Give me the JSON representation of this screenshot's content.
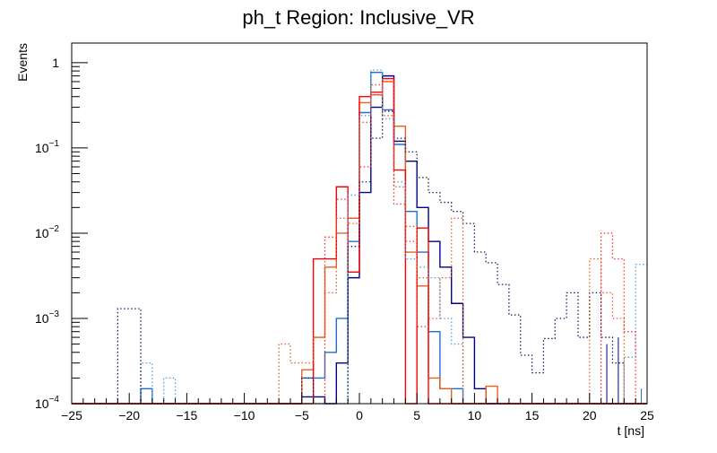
{
  "chart_data": {
    "type": "line",
    "title": "ph_t Region: Inclusive_VR",
    "xlabel": "t [ns]",
    "ylabel": "Events",
    "xlim": [
      -25,
      25
    ],
    "ylim": [
      0.0001,
      1.7
    ],
    "yscale": "log",
    "bin_width": 1,
    "x_ticks": [
      -25,
      -20,
      -15,
      -10,
      -5,
      0,
      5,
      10,
      15,
      20,
      25
    ],
    "x_tick_labels": [
      "−25",
      "−20",
      "−15",
      "−10",
      "−5",
      "0",
      "5",
      "10",
      "15",
      "20",
      "25"
    ],
    "y_ticks": [
      0.0001,
      0.001,
      0.01,
      0.1,
      1
    ],
    "y_tick_bases": [
      "10",
      "10",
      "10",
      "10",
      "1"
    ],
    "y_tick_exps": [
      "−4",
      "−3",
      "−2",
      "−1",
      ""
    ],
    "grid": false,
    "legend": "none",
    "series": [
      {
        "color": "#1f6fd1",
        "style": "solid",
        "bins": [
          [
            -19,
            0.00015
          ],
          [
            -5,
            0.0002
          ],
          [
            -4,
            0.0002
          ],
          [
            -3,
            0.0004
          ],
          [
            -2,
            0.001
          ],
          [
            -1,
            0.008
          ],
          [
            0,
            0.26
          ],
          [
            1,
            0.77
          ],
          [
            2,
            0.28
          ],
          [
            3,
            0.11
          ],
          [
            4,
            0.018
          ],
          [
            5,
            0.006
          ],
          [
            6,
            0.0007
          ],
          [
            7,
            0.00015
          ],
          [
            8,
            0.00015
          ]
        ],
        "empty_bins": [
          [
            24,
            0.00015
          ]
        ]
      },
      {
        "color": "#00008b",
        "style": "solid",
        "bins": [
          [
            -5,
            0.00012
          ],
          [
            -4,
            0.00012
          ],
          [
            -3,
            0.0001
          ],
          [
            -2,
            0.0003
          ],
          [
            -1,
            0.003
          ],
          [
            0,
            0.03
          ],
          [
            1,
            0.3
          ],
          [
            2,
            0.7
          ],
          [
            3,
            0.12
          ],
          [
            4,
            0.07
          ],
          [
            5,
            0.02
          ],
          [
            6,
            0.008
          ],
          [
            7,
            0.004
          ],
          [
            8,
            0.0015
          ],
          [
            9,
            0.0006
          ],
          [
            10,
            0.00015
          ]
        ],
        "empty_bins": [
          [
            21,
            0.0005
          ],
          [
            22,
            0.0006
          ]
        ]
      },
      {
        "color": "#e8601c",
        "style": "solid",
        "bins": [
          [
            -5,
            0.00025
          ],
          [
            -4,
            0.0006
          ],
          [
            -3,
            0.004
          ],
          [
            -2,
            0.01
          ],
          [
            -1,
            0.015
          ],
          [
            0,
            0.34
          ],
          [
            1,
            0.42
          ],
          [
            2,
            0.6
          ],
          [
            3,
            0.18
          ],
          [
            4,
            0.006
          ],
          [
            5,
            0.0024
          ],
          [
            6,
            0.0002
          ],
          [
            7,
            0.00015
          ],
          [
            11,
            0.00016
          ]
        ],
        "empty_bins": [
          [
            10,
            0.0001
          ]
        ]
      },
      {
        "color": "#ff0000",
        "style": "solid",
        "bins": [
          [
            -4,
            0.005
          ],
          [
            -3,
            0.005
          ],
          [
            -2,
            0.035
          ],
          [
            -1,
            0.0035
          ],
          [
            0,
            0.4
          ],
          [
            1,
            0.45
          ],
          [
            2,
            0.65
          ],
          [
            3,
            0.055
          ],
          [
            4,
            0.0001
          ],
          [
            5,
            0.0115
          ],
          [
            6,
            0.0001
          ]
        ],
        "empty_bins": []
      },
      {
        "color": "#4aa3df",
        "style": "dotted",
        "bins": [
          [
            -19,
            0.0003
          ],
          [
            -18,
            0.0001
          ],
          [
            -17,
            0.0002
          ],
          [
            -1,
            0.028
          ],
          [
            0,
            0.24
          ],
          [
            1,
            0.82
          ],
          [
            2,
            0.22
          ],
          [
            3,
            0.04
          ],
          [
            4,
            0.005
          ],
          [
            5,
            0.004
          ],
          [
            6,
            0.003
          ],
          [
            7,
            0.001
          ],
          [
            8,
            0.0005
          ],
          [
            23,
            0.00035
          ],
          [
            24,
            0.0043
          ]
        ],
        "empty_bins": []
      },
      {
        "color": "#1a1a66",
        "style": "dotted",
        "bins": [
          [
            -21,
            0.0013
          ],
          [
            -20,
            0.0013
          ],
          [
            -5,
            0.0002
          ],
          [
            -1,
            0.007
          ],
          [
            0,
            0.04
          ],
          [
            1,
            0.13
          ],
          [
            2,
            0.27
          ],
          [
            3,
            0.13
          ],
          [
            4,
            0.09
          ],
          [
            5,
            0.045
          ],
          [
            6,
            0.03
          ],
          [
            7,
            0.023
          ],
          [
            8,
            0.018
          ],
          [
            9,
            0.013
          ],
          [
            10,
            0.006
          ],
          [
            11,
            0.0045
          ],
          [
            12,
            0.0025
          ],
          [
            13,
            0.0011
          ],
          [
            14,
            0.00037
          ],
          [
            15,
            0.00023
          ],
          [
            16,
            0.00058
          ],
          [
            17,
            0.001
          ],
          [
            18,
            0.002
          ],
          [
            19,
            0.0006
          ],
          [
            20,
            0.002
          ],
          [
            21,
            0.0006
          ],
          [
            22,
            0.0003
          ]
        ],
        "empty_bins": []
      },
      {
        "color": "#e8601c",
        "style": "dotted",
        "bins": [
          [
            -7,
            0.0005
          ],
          [
            -6,
            0.0003
          ],
          [
            -5,
            0.0003
          ],
          [
            -4,
            0.0006
          ],
          [
            -3,
            0.002
          ],
          [
            -2,
            0.015
          ],
          [
            -1,
            0.013
          ],
          [
            0,
            0.2
          ],
          [
            1,
            0.55
          ],
          [
            2,
            0.24
          ],
          [
            3,
            0.035
          ],
          [
            4,
            0.012
          ],
          [
            5,
            0.003
          ],
          [
            6,
            0.001
          ],
          [
            7,
            0.003
          ],
          [
            8,
            0.015
          ],
          [
            20,
            0.005
          ],
          [
            21,
            0.002
          ],
          [
            22,
            0.001
          ]
        ],
        "empty_bins": []
      },
      {
        "color": "#ff3333",
        "style": "dotted",
        "bins": [
          [
            -3,
            0.009
          ],
          [
            -2,
            0.025
          ],
          [
            -1,
            0.015
          ],
          [
            0,
            0.06
          ],
          [
            1,
            0.42
          ],
          [
            2,
            0.6
          ],
          [
            3,
            0.022
          ],
          [
            4,
            0.008
          ],
          [
            5,
            0.0008
          ],
          [
            21,
            0.01
          ],
          [
            22,
            0.005
          ],
          [
            23,
            0.0007
          ]
        ],
        "empty_bins": []
      }
    ]
  }
}
